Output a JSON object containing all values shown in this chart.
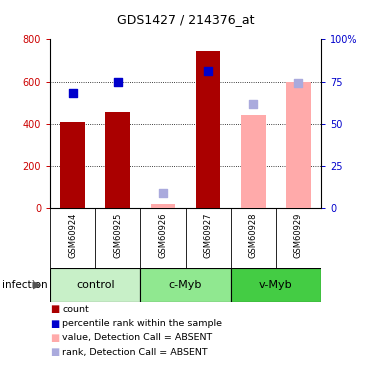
{
  "title": "GDS1427 / 214376_at",
  "samples": [
    "GSM60924",
    "GSM60925",
    "GSM60926",
    "GSM60927",
    "GSM60928",
    "GSM60929"
  ],
  "groups": [
    {
      "label": "control",
      "samples": [
        "GSM60924",
        "GSM60925"
      ],
      "color": "#c8f0c8"
    },
    {
      "label": "c-Myb",
      "samples": [
        "GSM60926",
        "GSM60927"
      ],
      "color": "#90e890"
    },
    {
      "label": "v-Myb",
      "samples": [
        "GSM60928",
        "GSM60929"
      ],
      "color": "#44cc44"
    }
  ],
  "infection_label": "infection",
  "ylim_left": [
    0,
    800
  ],
  "ylim_right": [
    0,
    100
  ],
  "yticks_left": [
    0,
    200,
    400,
    600,
    800
  ],
  "yticks_right": [
    0,
    25,
    50,
    75,
    100
  ],
  "ytick_labels_right": [
    "0",
    "25",
    "50",
    "75",
    "100%"
  ],
  "left_axis_color": "#cc0000",
  "right_axis_color": "#0000cc",
  "count_bars": {
    "GSM60924": {
      "value": 410,
      "absent": false
    },
    "GSM60925": {
      "value": 455,
      "absent": false
    },
    "GSM60926": {
      "value": 20,
      "absent": true
    },
    "GSM60927": {
      "value": 745,
      "absent": false
    },
    "GSM60928": {
      "value": 440,
      "absent": true
    },
    "GSM60929": {
      "value": 600,
      "absent": true
    }
  },
  "rank_dots": {
    "GSM60924": {
      "value": 68,
      "absent": false
    },
    "GSM60925": {
      "value": 75,
      "absent": false
    },
    "GSM60926": {
      "value": 9,
      "absent": true
    },
    "GSM60927": {
      "value": 81,
      "absent": false
    },
    "GSM60928": {
      "value": 62,
      "absent": true
    },
    "GSM60929": {
      "value": 74,
      "absent": true
    }
  },
  "count_bar_color_present": "#aa0000",
  "count_bar_color_absent": "#ffaaaa",
  "rank_dot_color_present": "#0000cc",
  "rank_dot_color_absent": "#aaaadd",
  "background_color": "#ffffff",
  "sample_label_bg": "#cccccc",
  "legend_items": [
    {
      "color": "#aa0000",
      "label": "count"
    },
    {
      "color": "#0000cc",
      "label": "percentile rank within the sample"
    },
    {
      "color": "#ffaaaa",
      "label": "value, Detection Call = ABSENT"
    },
    {
      "color": "#aaaadd",
      "label": "rank, Detection Call = ABSENT"
    }
  ]
}
